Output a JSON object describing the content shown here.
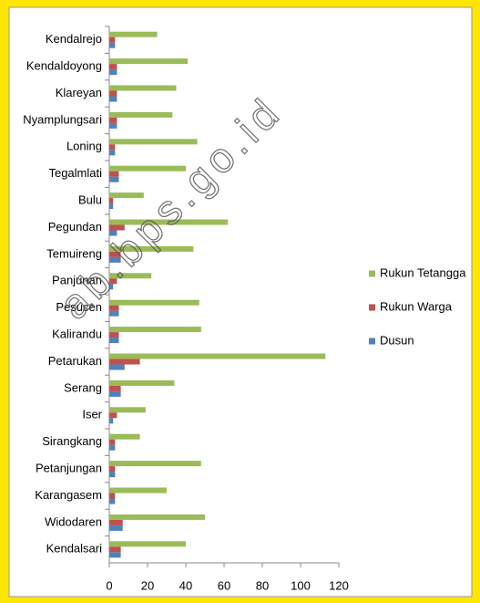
{
  "chart_data": {
    "type": "hbar",
    "categories": [
      "Kendalrejo",
      "Kendaldoyong",
      "Klareyan",
      "Nyamplungsari",
      "Loning",
      "Tegalmlati",
      "Bulu",
      "Pegundan",
      "Temuireng",
      "Panjunan",
      "Pesucen",
      "Kalirandu",
      "Petarukan",
      "Serang",
      "Iser",
      "Sirangkang",
      "Petanjungan",
      "Karangasem",
      "Widodaren",
      "Kendalsari"
    ],
    "series": [
      {
        "name": "Rukun Tetangga",
        "color": "#9bbb59",
        "values": [
          25,
          41,
          35,
          33,
          46,
          40,
          18,
          62,
          44,
          22,
          47,
          48,
          113,
          34,
          19,
          16,
          48,
          30,
          50,
          40
        ]
      },
      {
        "name": "Rukun Warga",
        "color": "#c0504d",
        "values": [
          3,
          4,
          4,
          4,
          3,
          5,
          2,
          8,
          6,
          4,
          5,
          5,
          16,
          6,
          4,
          3,
          3,
          3,
          7,
          6
        ]
      },
      {
        "name": "Dusun",
        "color": "#4f81bd",
        "values": [
          3,
          4,
          4,
          4,
          3,
          5,
          2,
          4,
          6,
          2,
          5,
          5,
          8,
          6,
          2,
          3,
          3,
          3,
          7,
          6
        ]
      }
    ],
    "xlim": [
      0,
      120
    ],
    "xticks": [
      0,
      20,
      40,
      60,
      80,
      100,
      120
    ],
    "grid": false,
    "legend": "right",
    "annotations": [
      "ab.bps.go.id"
    ]
  }
}
